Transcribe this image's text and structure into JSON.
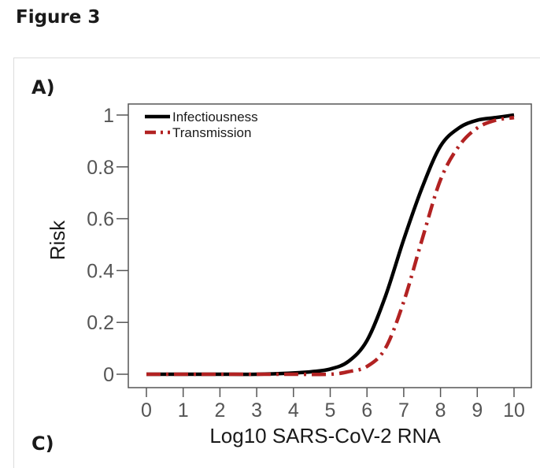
{
  "figure_title": "Figure 3",
  "panel_a_label": "A)",
  "panel_c_label": "C)",
  "chart_data": {
    "type": "line",
    "title": "",
    "xlabel": "Log10 SARS-CoV-2 RNA",
    "ylabel": "Risk",
    "xlim": [
      0,
      10
    ],
    "ylim": [
      0,
      1
    ],
    "xticks": [
      "0",
      "1",
      "2",
      "3",
      "4",
      "5",
      "6",
      "7",
      "8",
      "9",
      "10"
    ],
    "yticks": [
      "0",
      "0.2",
      "0.4",
      "0.6",
      "0.8",
      "1"
    ],
    "grid": false,
    "legend_position": "top-left",
    "series": [
      {
        "name": "Infectiousness",
        "color": "#000000",
        "style": "solid",
        "x": [
          0,
          1,
          2,
          3,
          4,
          4.5,
          5,
          5.5,
          6,
          6.5,
          7,
          7.5,
          8,
          8.5,
          9,
          9.5,
          10
        ],
        "y": [
          0,
          0,
          0,
          0,
          0.005,
          0.01,
          0.02,
          0.05,
          0.13,
          0.3,
          0.52,
          0.72,
          0.88,
          0.95,
          0.98,
          0.99,
          1
        ]
      },
      {
        "name": "Transmission",
        "color": "#b22222",
        "style": "dashdot",
        "x": [
          0,
          1,
          2,
          3,
          4,
          5,
          5.5,
          6,
          6.5,
          7,
          7.5,
          8,
          8.5,
          9,
          9.5,
          10
        ],
        "y": [
          0,
          0,
          0,
          0,
          0,
          0,
          0.01,
          0.03,
          0.1,
          0.28,
          0.52,
          0.75,
          0.88,
          0.95,
          0.98,
          0.99
        ]
      }
    ]
  }
}
